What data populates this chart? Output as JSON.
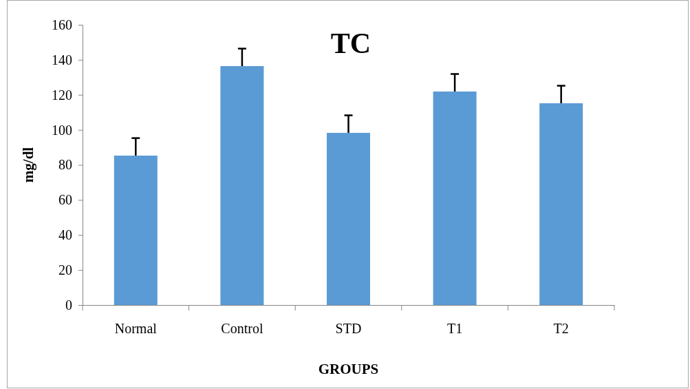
{
  "chart_data": {
    "type": "bar",
    "title": "TC",
    "xlabel": "GROUPS",
    "ylabel": "mg/dl",
    "categories": [
      "Normal",
      "Control",
      "STD",
      "T1",
      "T2"
    ],
    "values": [
      85.3,
      136.4,
      98.3,
      121.9,
      115.2
    ],
    "errors": [
      [
        85.3,
        95.3
      ],
      [
        136.4,
        146.4
      ],
      [
        98.3,
        108.3
      ],
      [
        121.9,
        131.9
      ],
      [
        115.2,
        125.2
      ]
    ],
    "color": "#5b9bd5",
    "ylim": [
      0,
      160
    ],
    "yticks": [
      0,
      20,
      40,
      60,
      80,
      100,
      120,
      140,
      160
    ]
  }
}
